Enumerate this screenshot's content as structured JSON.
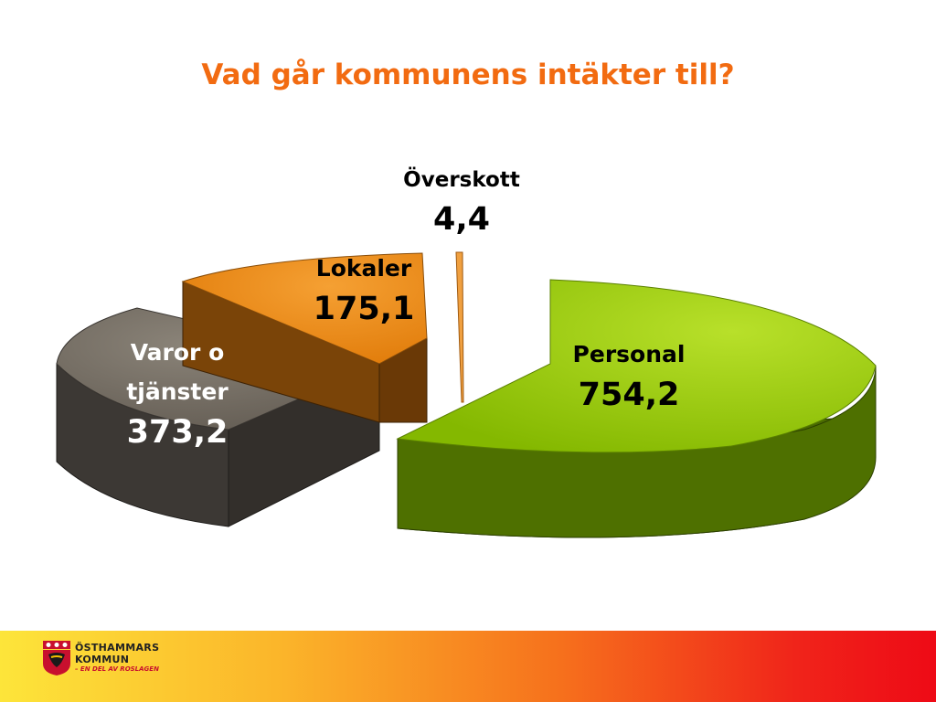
{
  "title": "Vad går kommunens intäkter till?",
  "chart_data": {
    "type": "pie",
    "title": "Vad går kommunens intäkter till?",
    "slices": [
      {
        "label": "Personal",
        "value": 754.2,
        "display": "754,2",
        "color": "#8fc400",
        "side_color": "#4a6b00"
      },
      {
        "label": "Överskott",
        "value": 4.4,
        "display": "4,4",
        "color": "#f0a040",
        "side_color": "#a05a10"
      },
      {
        "label": "Lokaler",
        "value": 175.1,
        "display": "175,1",
        "color": "#e8820e",
        "side_color": "#7a4408"
      },
      {
        "label": "Varor o tjänster",
        "label_lines": [
          "Varor o",
          "tjänster"
        ],
        "value": 373.2,
        "display": "373,2",
        "color": "#6c655c",
        "side_color": "#3a3632"
      }
    ],
    "legend": "none",
    "style": "3d-exploded"
  },
  "footer": {
    "logo_line1": "ÖSTHAMMARS",
    "logo_line2": "KOMMUN",
    "logo_line3": "– EN DEL AV ROSLAGEN"
  }
}
